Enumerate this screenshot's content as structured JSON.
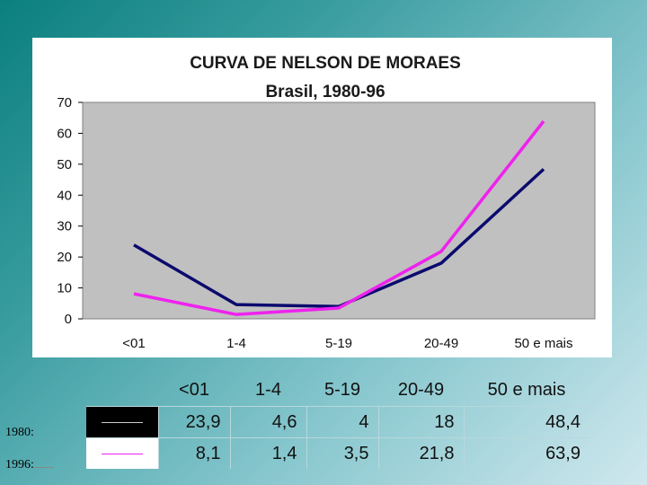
{
  "chart_data": {
    "type": "line",
    "title": "CURVA DE NELSON DE MORAES",
    "subtitle": "Brasil, 1980-96",
    "categories": [
      "<01",
      "1-4",
      "5-19",
      "20-49",
      "50 e mais"
    ],
    "ylim": [
      0,
      70
    ],
    "yticks": [
      0,
      10,
      20,
      30,
      40,
      50,
      60,
      70
    ],
    "ytick_labels": [
      "0",
      "10",
      "20",
      "30",
      "40",
      "50",
      "60",
      "70"
    ],
    "grid": false,
    "plot_background": "#c0c0c0",
    "series": [
      {
        "name": "1980",
        "values": [
          23.9,
          4.6,
          4,
          18,
          48.4
        ],
        "color": "#0a0a6e"
      },
      {
        "name": "1996",
        "values": [
          8.1,
          1.4,
          3.5,
          21.8,
          63.9
        ],
        "color": "#ee22ee"
      }
    ]
  },
  "table": {
    "header": [
      "<01",
      "1-4",
      "5-19",
      "20-49",
      "50 e mais"
    ],
    "rows": [
      {
        "label": "1980:",
        "values": [
          "23,9",
          "4,6",
          "4",
          "18",
          "48,4"
        ],
        "swatch": "black"
      },
      {
        "label": "1996:",
        "values": [
          "8,1",
          "1,4",
          "3,5",
          "21,8",
          "63,9"
        ],
        "swatch": "white"
      }
    ]
  }
}
